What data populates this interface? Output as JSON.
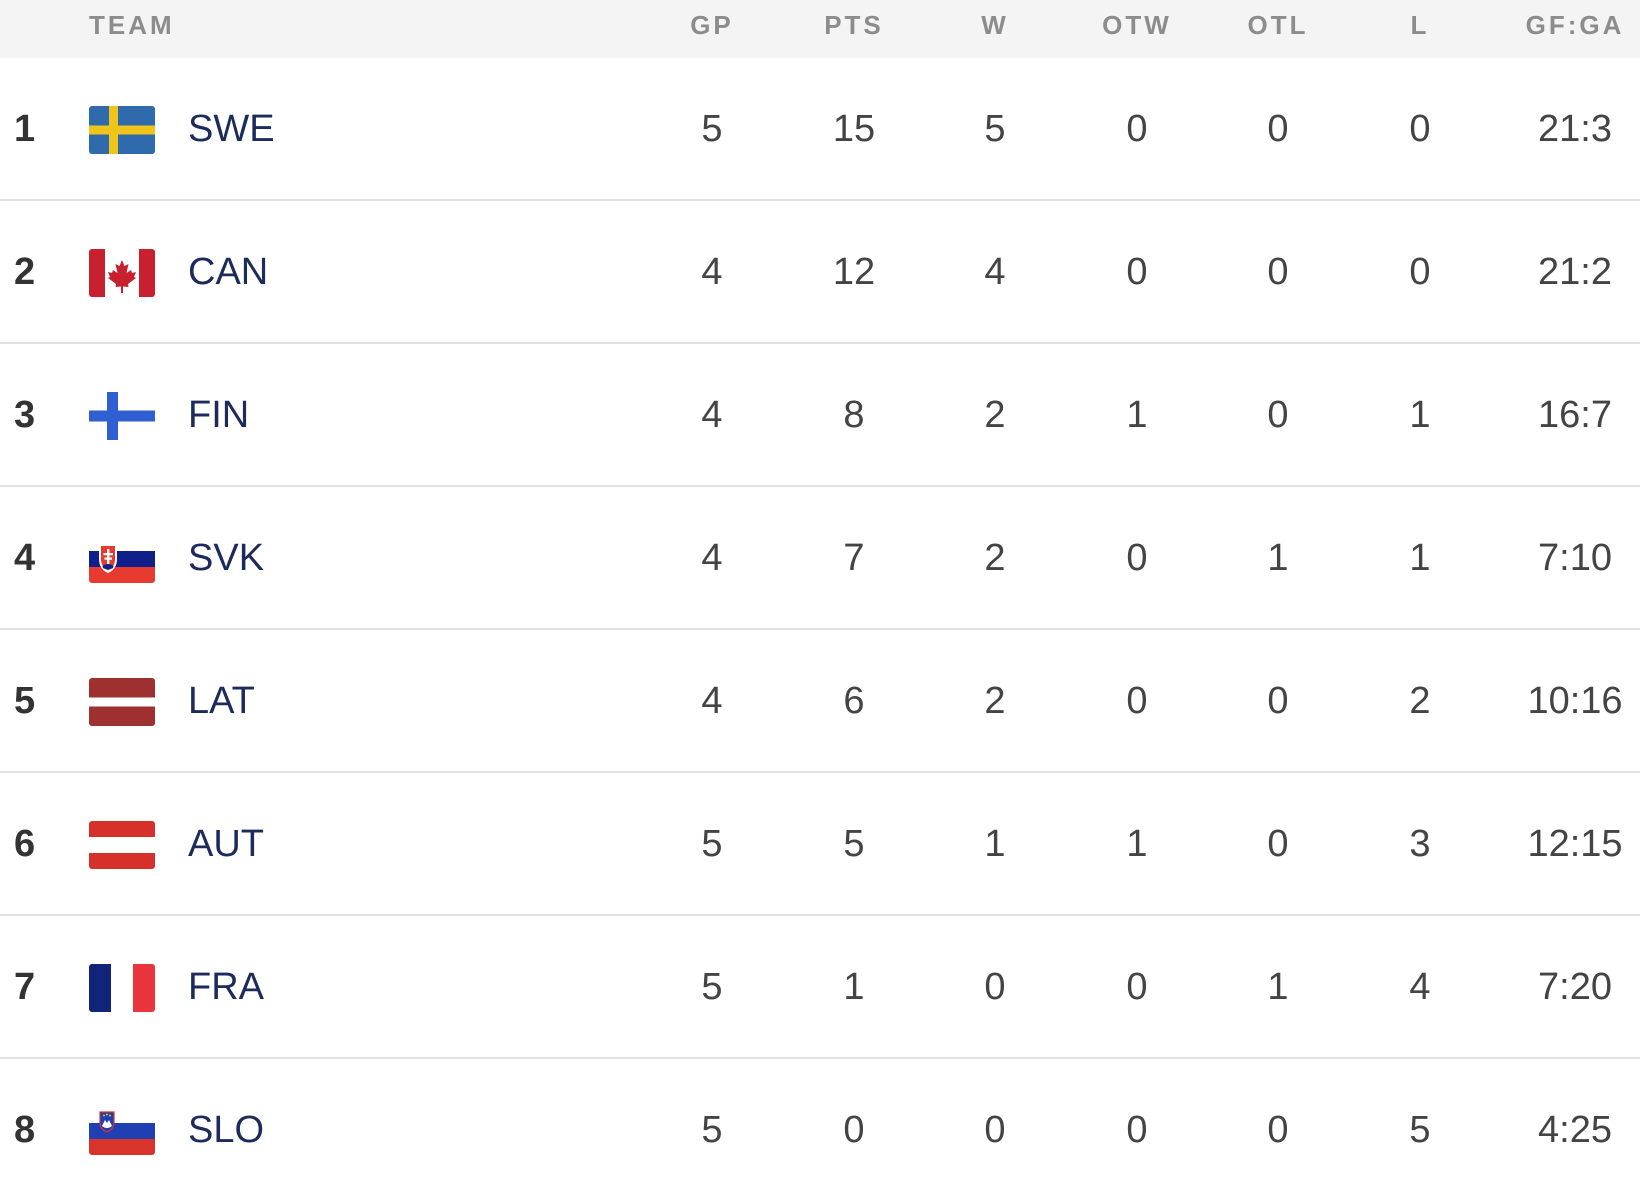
{
  "header": {
    "team": "TEAM",
    "gp": "GP",
    "pts": "PTS",
    "w": "W",
    "otw": "OTW",
    "otl": "OTL",
    "l": "L",
    "gfga": "GF:GA"
  },
  "rows": [
    {
      "rank": "1",
      "team": "SWE",
      "flag": "sweden-flag-icon",
      "gp": "5",
      "pts": "15",
      "w": "5",
      "otw": "0",
      "otl": "0",
      "l": "0",
      "gfga": "21:3"
    },
    {
      "rank": "2",
      "team": "CAN",
      "flag": "canada-flag-icon",
      "gp": "4",
      "pts": "12",
      "w": "4",
      "otw": "0",
      "otl": "0",
      "l": "0",
      "gfga": "21:2"
    },
    {
      "rank": "3",
      "team": "FIN",
      "flag": "finland-flag-icon",
      "gp": "4",
      "pts": "8",
      "w": "2",
      "otw": "1",
      "otl": "0",
      "l": "1",
      "gfga": "16:7"
    },
    {
      "rank": "4",
      "team": "SVK",
      "flag": "slovakia-flag-icon",
      "gp": "4",
      "pts": "7",
      "w": "2",
      "otw": "0",
      "otl": "1",
      "l": "1",
      "gfga": "7:10"
    },
    {
      "rank": "5",
      "team": "LAT",
      "flag": "latvia-flag-icon",
      "gp": "4",
      "pts": "6",
      "w": "2",
      "otw": "0",
      "otl": "0",
      "l": "2",
      "gfga": "10:16"
    },
    {
      "rank": "6",
      "team": "AUT",
      "flag": "austria-flag-icon",
      "gp": "5",
      "pts": "5",
      "w": "1",
      "otw": "1",
      "otl": "0",
      "l": "3",
      "gfga": "12:15"
    },
    {
      "rank": "7",
      "team": "FRA",
      "flag": "france-flag-icon",
      "gp": "5",
      "pts": "1",
      "w": "0",
      "otw": "0",
      "otl": "1",
      "l": "4",
      "gfga": "7:20"
    },
    {
      "rank": "8",
      "team": "SLO",
      "flag": "slovenia-flag-icon",
      "gp": "5",
      "pts": "0",
      "w": "0",
      "otw": "0",
      "otl": "0",
      "l": "5",
      "gfga": "4:25"
    }
  ],
  "colors": {
    "header_bg": "#f4f4f4",
    "header_text": "#8c8c8c",
    "team_text": "#1c2a5c",
    "value_text": "#444444",
    "row_divider": "#e2e2e2"
  }
}
